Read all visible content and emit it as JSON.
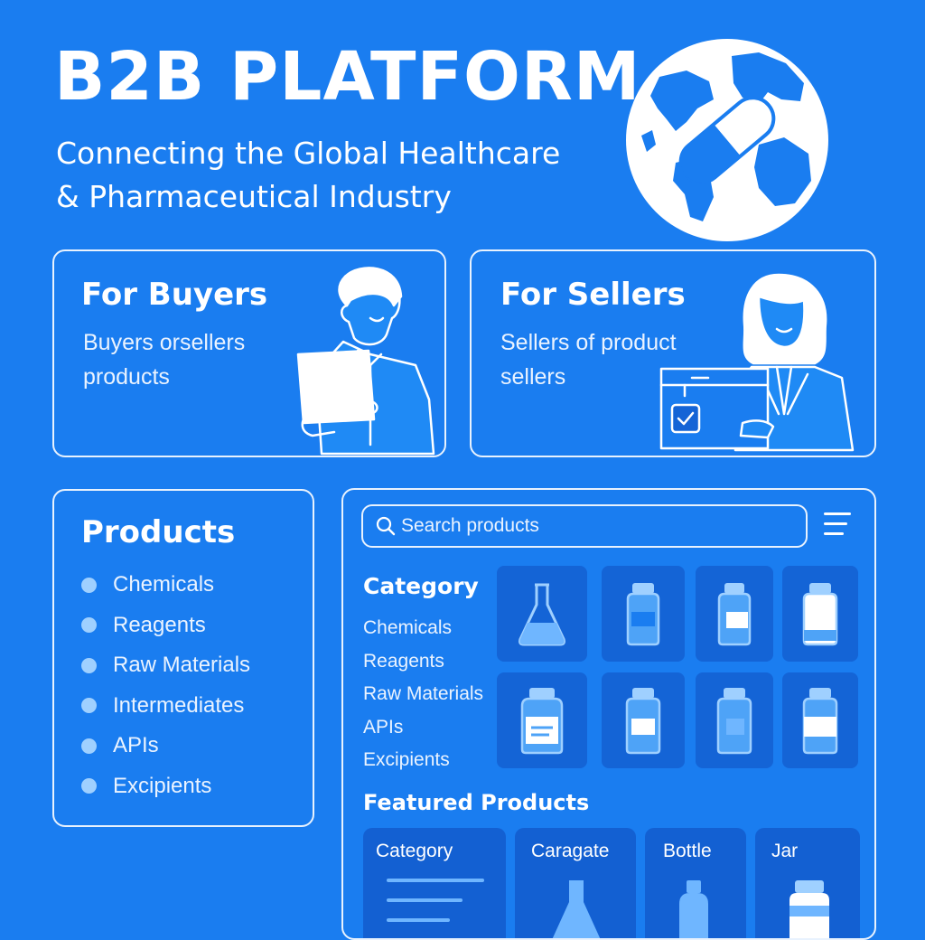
{
  "header": {
    "title": "B2B PLATFORM",
    "subtitle_line1": "Connecting the Global Healthcare",
    "subtitle_line2": "& Pharmaceutical Industry",
    "logo_icon": "globe-with-capsule-icon"
  },
  "buyers": {
    "title": "For Buyers",
    "desc_line1": "Buyers orsellers",
    "desc_line2": "products",
    "illustration": "man-with-tablet"
  },
  "sellers": {
    "title": "For Sellers",
    "desc_line1": "Sellers of product",
    "desc_line2": "sellers",
    "illustration": "woman-with-box"
  },
  "products": {
    "title": "Products",
    "items": [
      "Chemicals",
      "Reagents",
      "Raw Materials",
      "Intermediates",
      "APIs",
      "Excipients"
    ]
  },
  "catalog": {
    "search_placeholder": "Search products",
    "category_heading": "Category",
    "categories": [
      "Chemicals",
      "Reagents",
      "Raw Materials",
      "APIs",
      "Excipients"
    ],
    "tiles": [
      "flask-icon",
      "bottle-icon",
      "bottle-icon",
      "bottle-icon",
      "bottle-icon",
      "bottle-icon",
      "bottle-icon",
      "bottle-icon"
    ],
    "featured_heading": "Featured Products",
    "featured": [
      "Category",
      "Caragate",
      "Bottle",
      "Jar"
    ]
  },
  "colors": {
    "background": "#1a7df0",
    "tile": "#1464d6",
    "accent_light": "#9fd0ff",
    "text": "#ffffff"
  }
}
